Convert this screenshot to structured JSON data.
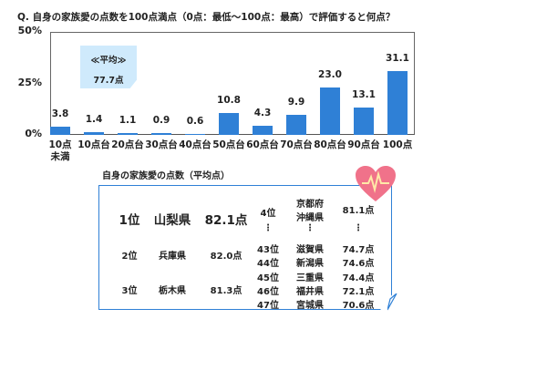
{
  "chart_data": {
    "type": "bar",
    "title": "Q. 自身の家族愛の点数を100点満点（0点：最低～100点：最高）で評価すると何点？",
    "categories": [
      "10点\n未満",
      "10点台",
      "20点台",
      "30点台",
      "40点台",
      "50点台",
      "60点台",
      "70点台",
      "80点台",
      "90点台",
      "100点"
    ],
    "values": [
      3.8,
      1.4,
      1.1,
      0.9,
      0.6,
      10.8,
      4.3,
      9.9,
      23.0,
      13.1,
      31.1
    ],
    "value_labels": [
      "3.8",
      "1.4",
      "1.1",
      "0.9",
      "0.6",
      "10.8",
      "4.3",
      "9.9",
      "23.0",
      "13.1",
      "31.1"
    ],
    "yticks": [
      "0%",
      "25%",
      "50%"
    ],
    "ylim": [
      0,
      50
    ],
    "unit": "%",
    "bar_color": "#2f80d6",
    "grid": false
  },
  "average": {
    "label": "≪平均≫",
    "value": "77.7点"
  },
  "ranking": {
    "title": "自身の家族愛の点数（平均点）",
    "top": [
      {
        "rank": "1位",
        "pref": "山梨県",
        "score": "82.1点"
      },
      {
        "rank": "2位",
        "pref": "兵庫県",
        "score": "82.0点"
      },
      {
        "rank": "3位",
        "pref": "栃木県",
        "score": "81.3点"
      }
    ],
    "fourth": {
      "rank": "4位",
      "pref1": "京都府",
      "pref2": "沖縄県",
      "score": "81.1点"
    },
    "ellipsis": "⋮",
    "bottom": [
      {
        "rank": "43位",
        "pref": "滋賀県",
        "score": "74.7点"
      },
      {
        "rank": "44位",
        "pref": "新潟県",
        "score": "74.6点"
      },
      {
        "rank": "45位",
        "pref": "三重県",
        "score": "74.4点"
      },
      {
        "rank": "46位",
        "pref": "福井県",
        "score": "72.1点"
      },
      {
        "rank": "47位",
        "pref": "宮城県",
        "score": "70.6点"
      }
    ],
    "heart_icon": "heart-pulse-icon",
    "heart_color": "#f0728a"
  }
}
